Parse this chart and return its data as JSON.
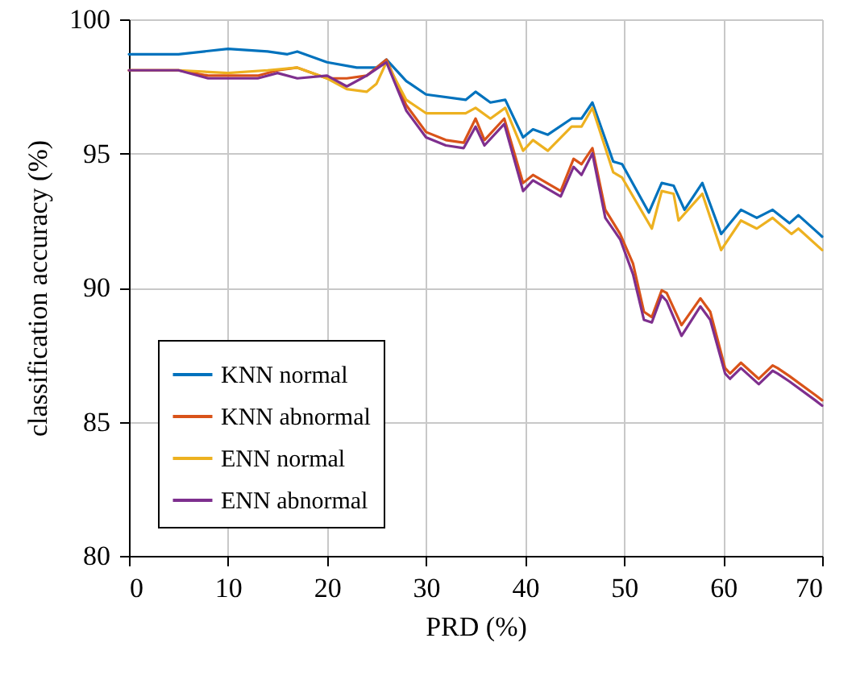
{
  "chart_data": {
    "type": "line",
    "xlabel": "PRD (%)",
    "ylabel": "classification accuracy (%)",
    "xlim": [
      0,
      70
    ],
    "xticks": [
      0,
      10,
      20,
      30,
      40,
      50,
      60,
      70
    ],
    "ylim": [
      80,
      100
    ],
    "yticks": [
      80,
      85,
      90,
      95,
      100
    ],
    "grid": true,
    "legend": "bottom left",
    "line_style": "solid",
    "series": [
      {
        "name": "KNN normal",
        "color": "#0072bd",
        "x": [
          0,
          5,
          10,
          14,
          16,
          17,
          20,
          23,
          25,
          26,
          28,
          30,
          34,
          35,
          36.5,
          38,
          39.8,
          40.8,
          42.3,
          44.7,
          45.7,
          46.8,
          48.9,
          49.8,
          52.5,
          53.8,
          55,
          56.1,
          57.9,
          59.8,
          61.8,
          63.4,
          65,
          66.7,
          67.6,
          70
        ],
        "values": [
          98.7,
          98.7,
          98.9,
          98.8,
          98.7,
          98.8,
          98.4,
          98.2,
          98.2,
          98.5,
          97.7,
          97.2,
          97.0,
          97.3,
          96.9,
          97.0,
          95.6,
          95.9,
          95.7,
          96.3,
          96.3,
          96.9,
          94.7,
          94.6,
          92.8,
          93.9,
          93.8,
          92.9,
          93.9,
          92.0,
          92.9,
          92.6,
          92.9,
          92.4,
          92.7,
          91.9
        ]
      },
      {
        "name": "KNN abnormal",
        "color": "#d95319",
        "x": [
          0,
          5,
          8,
          13,
          15,
          17,
          20,
          22,
          24,
          26,
          28,
          30,
          32,
          33.8,
          35,
          35.9,
          37.9,
          39.8,
          40.8,
          43.6,
          44.9,
          45.7,
          46.8,
          48.1,
          49.6,
          50.9,
          52,
          52.8,
          53.8,
          54.3,
          55.8,
          57.7,
          58.7,
          60.2,
          60.7,
          61.8,
          63.6,
          65,
          65.5,
          66.7,
          69.3,
          70
        ],
        "values": [
          98.1,
          98.1,
          97.9,
          97.9,
          98.1,
          98.2,
          97.8,
          97.8,
          97.9,
          98.5,
          96.8,
          95.8,
          95.5,
          95.4,
          96.3,
          95.5,
          96.3,
          93.9,
          94.2,
          93.6,
          94.8,
          94.6,
          95.2,
          92.9,
          92.0,
          90.9,
          89.1,
          88.9,
          89.9,
          89.8,
          88.6,
          89.6,
          89.1,
          87.0,
          86.8,
          87.2,
          86.6,
          87.1,
          87.0,
          86.7,
          86.0,
          85.8
        ]
      },
      {
        "name": "ENN normal",
        "color": "#edb120",
        "x": [
          0,
          5,
          10,
          14,
          17,
          20,
          22,
          24,
          25,
          26,
          28,
          30,
          34,
          35,
          36.5,
          38,
          39.8,
          40.8,
          42.3,
          44.7,
          45.7,
          46.8,
          48.9,
          49.8,
          52.8,
          53.8,
          55,
          55.5,
          57.9,
          59.8,
          61.8,
          63.4,
          65,
          66.9,
          67.6,
          70
        ],
        "values": [
          98.1,
          98.1,
          98.0,
          98.1,
          98.2,
          97.8,
          97.4,
          97.3,
          97.6,
          98.4,
          97.0,
          96.5,
          96.5,
          96.7,
          96.3,
          96.7,
          95.1,
          95.5,
          95.1,
          96.0,
          96.0,
          96.7,
          94.3,
          94.1,
          92.2,
          93.6,
          93.5,
          92.5,
          93.5,
          91.4,
          92.5,
          92.2,
          92.6,
          92.0,
          92.2,
          91.4
        ]
      },
      {
        "name": "ENN abnormal",
        "color": "#7e2f8e",
        "x": [
          0,
          5,
          8,
          13,
          15,
          17,
          20,
          22,
          24,
          26,
          28,
          30,
          32,
          33.8,
          35,
          35.9,
          37.9,
          39.8,
          40.8,
          43.6,
          44.9,
          45.7,
          46.8,
          48.1,
          49.6,
          50.9,
          52,
          52.8,
          53.8,
          54.3,
          55.8,
          57.7,
          58.7,
          60.2,
          60.7,
          61.8,
          63.6,
          65,
          65.5,
          66.7,
          69.3,
          70
        ],
        "values": [
          98.1,
          98.1,
          97.8,
          97.8,
          98.0,
          97.8,
          97.9,
          97.5,
          97.9,
          98.4,
          96.6,
          95.6,
          95.3,
          95.2,
          96.0,
          95.3,
          96.1,
          93.6,
          94.0,
          93.4,
          94.5,
          94.2,
          95.0,
          92.6,
          91.8,
          90.5,
          88.8,
          88.7,
          89.7,
          89.5,
          88.2,
          89.3,
          88.8,
          86.8,
          86.6,
          87.0,
          86.4,
          86.9,
          86.8,
          86.5,
          85.8,
          85.6
        ]
      }
    ]
  }
}
